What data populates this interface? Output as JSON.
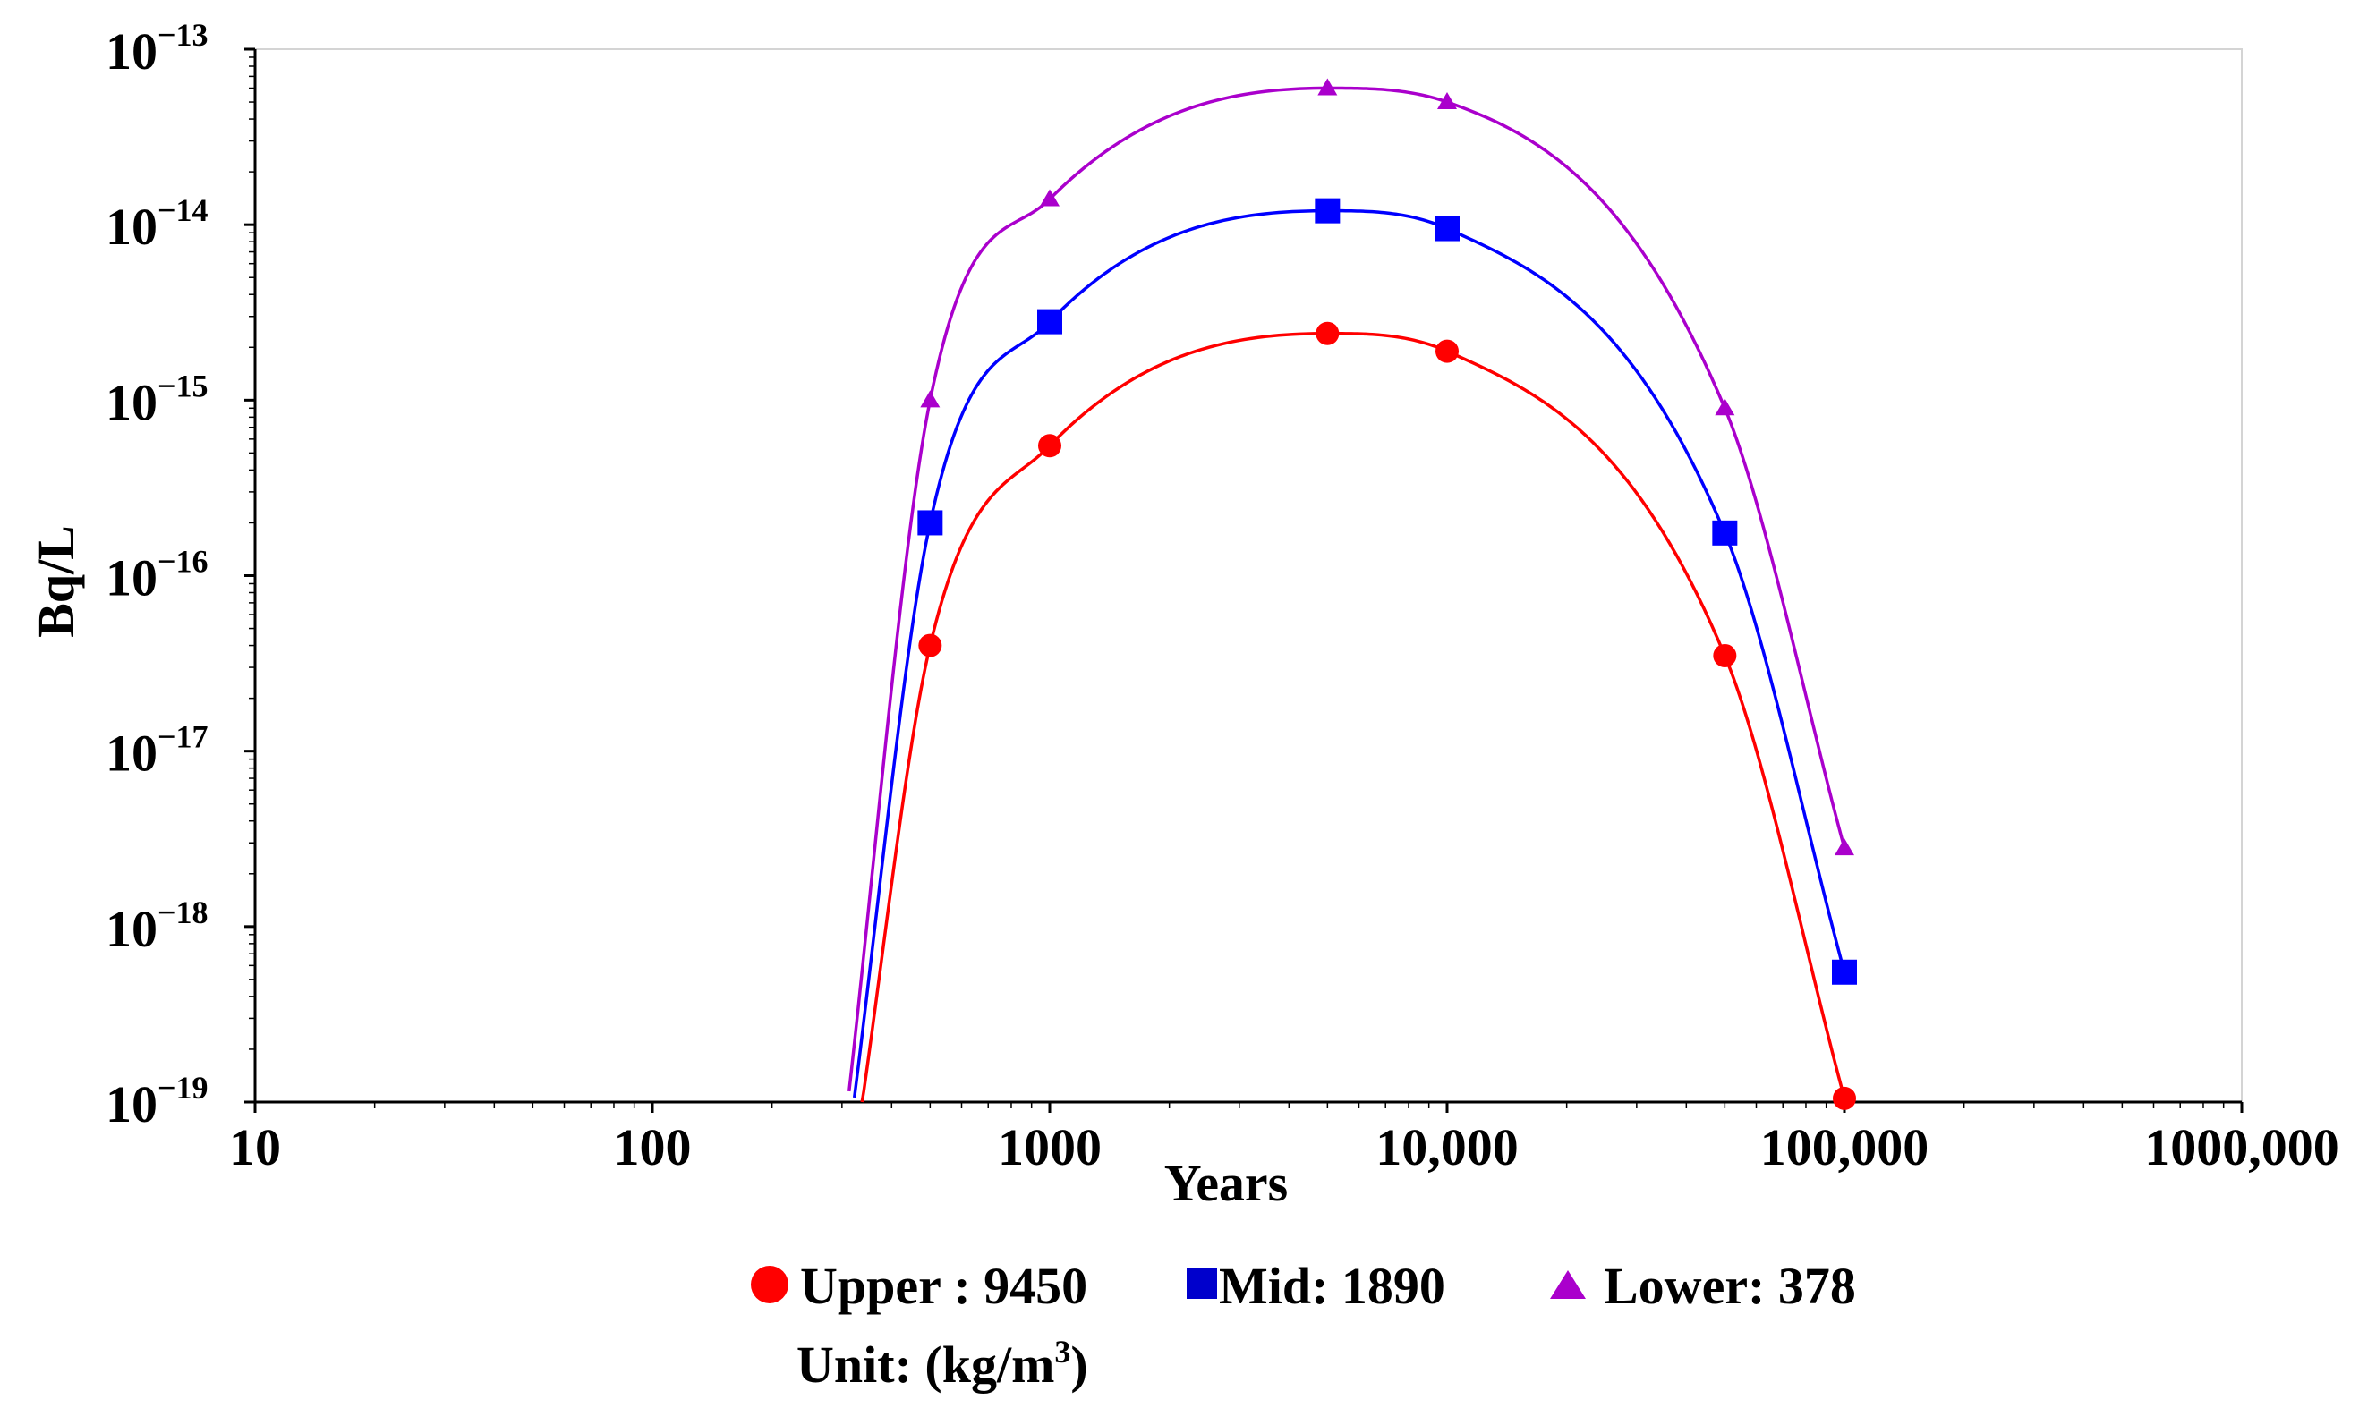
{
  "chart_data": {
    "type": "line",
    "title": "",
    "xlabel": "Years",
    "ylabel": "Bq/L",
    "x_scale": "log",
    "y_scale": "log",
    "xlim": [
      10,
      1000000
    ],
    "ylim": [
      1e-19,
      1e-13
    ],
    "x_ticks": [
      {
        "value": 10,
        "label": "10"
      },
      {
        "value": 100,
        "label": "100"
      },
      {
        "value": 1000,
        "label": "1000"
      },
      {
        "value": 10000,
        "label": "10,000"
      },
      {
        "value": 100000,
        "label": "100,000"
      },
      {
        "value": 1000000,
        "label": "1000,000"
      }
    ],
    "y_ticks": [
      {
        "value": 1e-13,
        "base": "10",
        "exp": "−13"
      },
      {
        "value": 1e-14,
        "base": "10",
        "exp": "−14"
      },
      {
        "value": 1e-15,
        "base": "10",
        "exp": "−15"
      },
      {
        "value": 1e-16,
        "base": "10",
        "exp": "−16"
      },
      {
        "value": 1e-17,
        "base": "10",
        "exp": "−17"
      },
      {
        "value": 1e-18,
        "base": "10",
        "exp": "−18"
      },
      {
        "value": 1e-19,
        "base": "10",
        "exp": "−19"
      }
    ],
    "series": [
      {
        "name": "Upper : 9450",
        "color": "#ff0000",
        "marker": "circle",
        "x": [
          500,
          1000,
          5000,
          10000,
          50000,
          100000
        ],
        "values": [
          4e-17,
          5.5e-16,
          2.4e-15,
          1.9e-15,
          3.5e-17,
          1.05e-19
        ],
        "curve_start_x": 330
      },
      {
        "name": "Mid: 1890",
        "color": "#0000ff",
        "marker": "square",
        "x": [
          500,
          1000,
          5000,
          10000,
          50000,
          100000
        ],
        "values": [
          2e-16,
          2.8e-15,
          1.2e-14,
          9.5e-15,
          1.75e-16,
          5.5e-19
        ],
        "curve_start_x": 315
      },
      {
        "name": "Lower: 378",
        "color": "#aa00cc",
        "marker": "triangle",
        "x": [
          500,
          1000,
          5000,
          10000,
          50000,
          100000
        ],
        "values": [
          1e-15,
          1.4e-14,
          6e-14,
          5e-14,
          9e-16,
          2.8e-18
        ],
        "curve_start_x": 305
      }
    ],
    "legend": {
      "placement": "bottom",
      "unit_label": "Unit: (kg/m",
      "unit_sup": "3",
      "unit_close": ")"
    },
    "grid": false
  }
}
